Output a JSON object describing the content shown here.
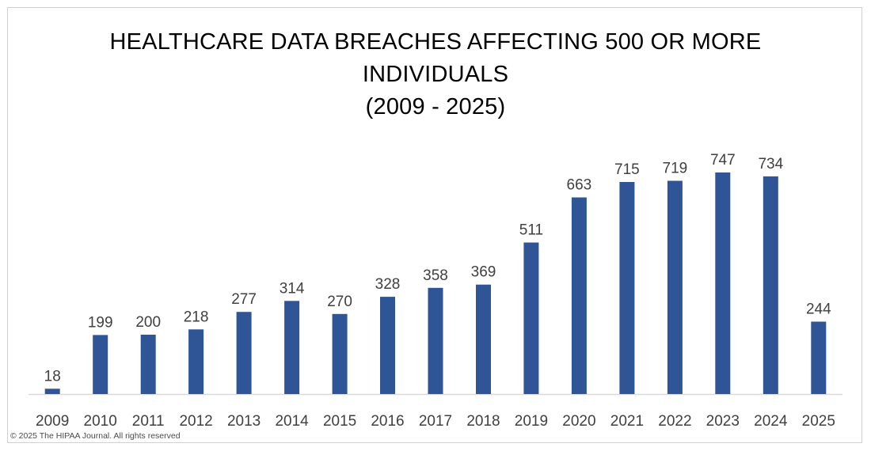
{
  "chart_data": {
    "type": "bar",
    "title_lines": [
      "HEALTHCARE DATA BREACHES AFFECTING 500 OR MORE",
      "INDIVIDUALS",
      "(2009 - 2025)"
    ],
    "categories": [
      "2009",
      "2010",
      "2011",
      "2012",
      "2013",
      "2014",
      "2015",
      "2016",
      "2017",
      "2018",
      "2019",
      "2020",
      "2021",
      "2022",
      "2023",
      "2024",
      "2025"
    ],
    "values": [
      18,
      199,
      200,
      218,
      277,
      314,
      270,
      328,
      358,
      369,
      511,
      663,
      715,
      719,
      747,
      734,
      244
    ],
    "ylim": [
      0,
      747
    ],
    "grid": false,
    "legend": "none",
    "bar_color": "#2f5597",
    "axis_color": "#d9d9d9",
    "label_color": "#404040"
  },
  "footer": {
    "copyright": "© 2025 The HIPAA Journal. All rights reserved"
  }
}
